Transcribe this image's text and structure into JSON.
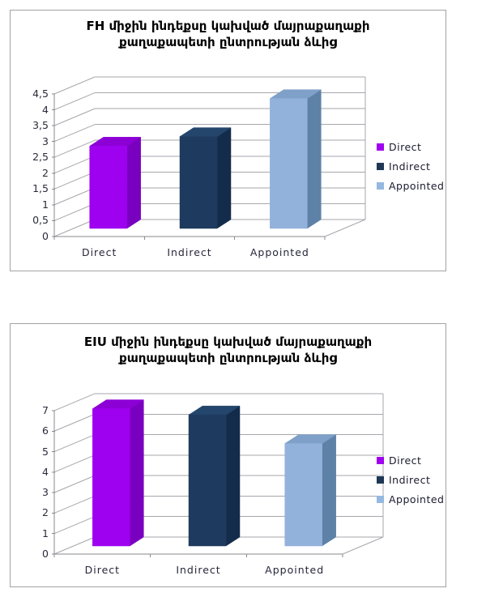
{
  "chart_data": [
    {
      "type": "bar",
      "style": "3d-column",
      "title": "FH միջին ինդեքսը կախված մայրաքաղաքի քաղաքապետի ընտրության ձևից",
      "title_lines": [
        "FH միջին ինդեքսը կախված մայրաքաղաքի",
        "քաղաքապետի ընտրության ձևից"
      ],
      "categories": [
        "Direct",
        "Indirect",
        "Appointed"
      ],
      "values": [
        2.6,
        2.9,
        4.1
      ],
      "xlabel": "",
      "ylabel": "",
      "ylim": [
        0,
        4.5
      ],
      "ytick_step": 0.5,
      "ytick_labels": [
        "0",
        "0,5",
        "1",
        "1,5",
        "2",
        "2,5",
        "3",
        "3,5",
        "4",
        "4,5"
      ],
      "grid": true,
      "legend_position": "right",
      "legend": [
        {
          "label": "Direct",
          "color": "#a000f0"
        },
        {
          "label": "Indirect",
          "color": "#1f3754"
        },
        {
          "label": "Appointed",
          "color": "#95b8e0"
        }
      ],
      "series_colors": [
        {
          "front": "#9e00f0",
          "side": "#7a00c0",
          "top": "#8c00d6"
        },
        {
          "front": "#1e3a5f",
          "side": "#142c4b",
          "top": "#24466c"
        },
        {
          "front": "#92b2dc",
          "side": "#5e81a7",
          "top": "#7fa0c8"
        }
      ]
    },
    {
      "type": "bar",
      "style": "3d-column",
      "title": "EIU միջին ինդեքսը կախված մայրաքաղաքի քաղաքապետի ընտրության ձևից",
      "title_lines": [
        "EIU միջին ինդեքսը կախված մայրաքաղաքի",
        "քաղաքապետի ընտրության ձևից"
      ],
      "categories": [
        "Direct",
        "Indirect",
        "Appointed"
      ],
      "values": [
        6.7,
        6.4,
        5.0
      ],
      "xlabel": "",
      "ylabel": "",
      "ylim": [
        0,
        7
      ],
      "ytick_step": 1,
      "ytick_labels": [
        "0",
        "1",
        "2",
        "3",
        "4",
        "5",
        "6",
        "7"
      ],
      "grid": true,
      "legend_position": "right",
      "legend": [
        {
          "label": "Direct",
          "color": "#a000f0"
        },
        {
          "label": "Indirect",
          "color": "#1f3754"
        },
        {
          "label": "Appointed",
          "color": "#95b8e0"
        }
      ],
      "series_colors": [
        {
          "front": "#9e00f0",
          "side": "#7a00c0",
          "top": "#8c00d6"
        },
        {
          "front": "#1e3a5f",
          "side": "#142c4b",
          "top": "#24466c"
        },
        {
          "front": "#92b2dc",
          "side": "#5e81a7",
          "top": "#7fa0c8"
        }
      ]
    }
  ],
  "colors": {
    "panel_border": "#a3a3a3",
    "grid_line": "#a7a7ac",
    "axis_line": "#8a8a90",
    "title_text": "#000000",
    "tick_text": "#2b2b3b",
    "category_text": "#26263a",
    "legend_text": "#1a1a2e",
    "background": "#ffffff"
  }
}
